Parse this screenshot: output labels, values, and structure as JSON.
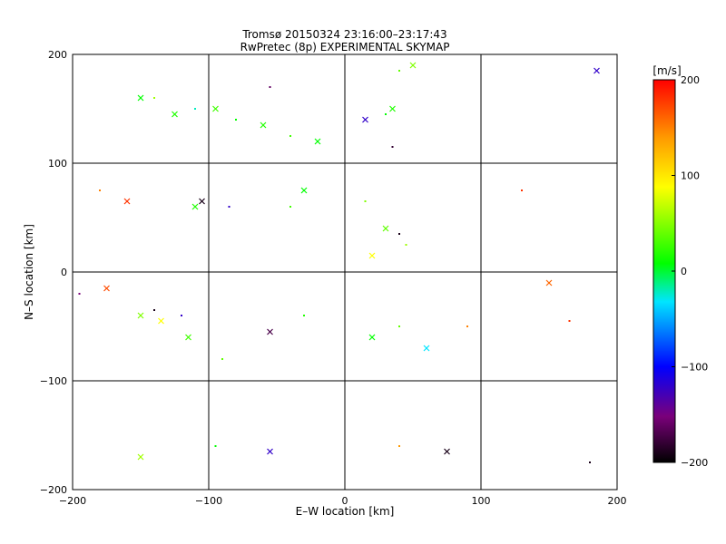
{
  "chart_data": {
    "type": "scatter",
    "title": "Tromsø 20150324 23:16:00–23:17:43",
    "subtitle": "RwPretec (8p) EXPERIMENTAL SKYMAP",
    "xlabel": "E–W location [km]",
    "ylabel": "N–S location [km]",
    "xlim": [
      -200,
      200
    ],
    "ylim": [
      -200,
      200
    ],
    "x_ticks": [
      -200,
      -100,
      0,
      100,
      200
    ],
    "y_ticks": [
      -200,
      -100,
      0,
      100,
      200
    ],
    "grid": true,
    "markers": [
      "x",
      "dot"
    ],
    "colorbar": {
      "unit": "[m/s]",
      "range": [
        -200,
        200
      ],
      "ticks": [
        200,
        100,
        0,
        -100,
        -200
      ],
      "colormap": "rainbow (black-purple-blue-cyan-green-yellow-orange-red)"
    },
    "points": [
      {
        "x": -150,
        "y": 160,
        "v": 10
      },
      {
        "x": -140,
        "y": 160,
        "v": 60
      },
      {
        "x": -125,
        "y": 145,
        "v": 20
      },
      {
        "x": -110,
        "y": 150,
        "v": -20
      },
      {
        "x": -95,
        "y": 150,
        "v": 30
      },
      {
        "x": -80,
        "y": 140,
        "v": 10
      },
      {
        "x": -60,
        "y": 135,
        "v": 20
      },
      {
        "x": -40,
        "y": 125,
        "v": 30
      },
      {
        "x": -20,
        "y": 120,
        "v": 10
      },
      {
        "x": 30,
        "y": 145,
        "v": 10
      },
      {
        "x": 35,
        "y": 150,
        "v": 20
      },
      {
        "x": 40,
        "y": 185,
        "v": 40
      },
      {
        "x": 50,
        "y": 190,
        "v": 50
      },
      {
        "x": -55,
        "y": 170,
        "v": -160
      },
      {
        "x": 15,
        "y": 140,
        "v": -120
      },
      {
        "x": 35,
        "y": 115,
        "v": -180
      },
      {
        "x": -105,
        "y": 65,
        "v": -190
      },
      {
        "x": -85,
        "y": 60,
        "v": -120
      },
      {
        "x": -110,
        "y": 60,
        "v": 20
      },
      {
        "x": -40,
        "y": 60,
        "v": 30
      },
      {
        "x": -30,
        "y": 75,
        "v": 10
      },
      {
        "x": 15,
        "y": 65,
        "v": 50
      },
      {
        "x": 30,
        "y": 40,
        "v": 40
      },
      {
        "x": 45,
        "y": 25,
        "v": 60
      },
      {
        "x": 20,
        "y": 15,
        "v": 90
      },
      {
        "x": 40,
        "y": 35,
        "v": -190
      },
      {
        "x": -160,
        "y": 65,
        "v": 180
      },
      {
        "x": -180,
        "y": 75,
        "v": 150
      },
      {
        "x": -175,
        "y": -15,
        "v": 170
      },
      {
        "x": -195,
        "y": -20,
        "v": -150
      },
      {
        "x": -150,
        "y": -40,
        "v": 50
      },
      {
        "x": -140,
        "y": -35,
        "v": -190
      },
      {
        "x": -135,
        "y": -45,
        "v": 90
      },
      {
        "x": -120,
        "y": -40,
        "v": -120
      },
      {
        "x": -115,
        "y": -60,
        "v": 30
      },
      {
        "x": -90,
        "y": -80,
        "v": 40
      },
      {
        "x": -55,
        "y": -55,
        "v": -170
      },
      {
        "x": -30,
        "y": -40,
        "v": 20
      },
      {
        "x": 20,
        "y": -60,
        "v": 10
      },
      {
        "x": 40,
        "y": -50,
        "v": 40
      },
      {
        "x": 60,
        "y": -70,
        "v": -30
      },
      {
        "x": 90,
        "y": -50,
        "v": 150
      },
      {
        "x": -55,
        "y": -165,
        "v": -120
      },
      {
        "x": -95,
        "y": -160,
        "v": 10
      },
      {
        "x": -150,
        "y": -170,
        "v": 60
      },
      {
        "x": 40,
        "y": -160,
        "v": 140
      },
      {
        "x": 75,
        "y": -165,
        "v": -190
      },
      {
        "x": 180,
        "y": -175,
        "v": -190
      },
      {
        "x": 185,
        "y": 185,
        "v": -120
      },
      {
        "x": 130,
        "y": 75,
        "v": 180
      },
      {
        "x": 150,
        "y": -10,
        "v": 160
      },
      {
        "x": 165,
        "y": -45,
        "v": 180
      }
    ]
  }
}
